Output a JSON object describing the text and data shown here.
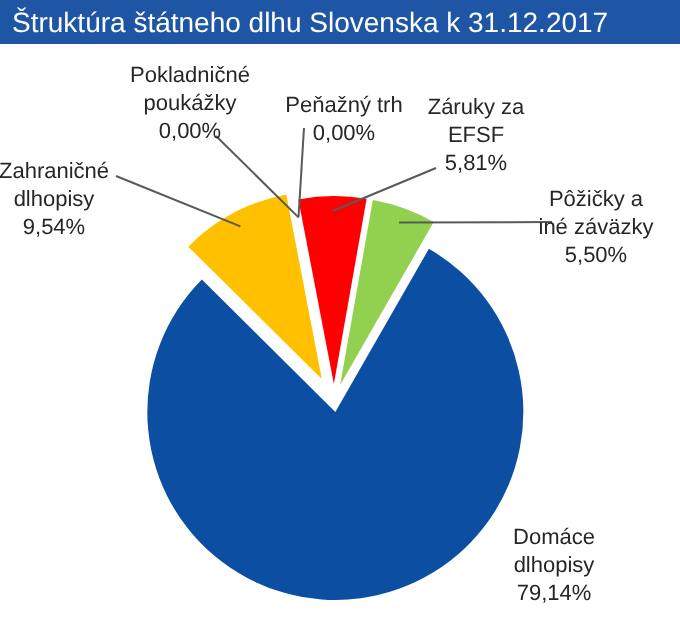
{
  "chart_data": {
    "type": "pie",
    "title": "Štruktúra štátneho dlhu Slovenska k 31.12.2017",
    "categories": [
      "Pokladničné poukážky",
      "Peňažný trh",
      "Záruky za EFSF",
      "Pôžičky a iné záväzky",
      "Domáce dlhopisy",
      "Zahraničné dlhopisy"
    ],
    "values": [
      0,
      0,
      5.81,
      5.5,
      79.14,
      9.54
    ],
    "colors": [
      "#7f7f7f",
      "#a5a5a5",
      "#ff0000",
      "#92d050",
      "#0b4ea2",
      "#ffc000"
    ],
    "value_labels": [
      "0,00%",
      "0,00%",
      "5,81%",
      "5,50%",
      "79,14%",
      "9,54%"
    ]
  }
}
